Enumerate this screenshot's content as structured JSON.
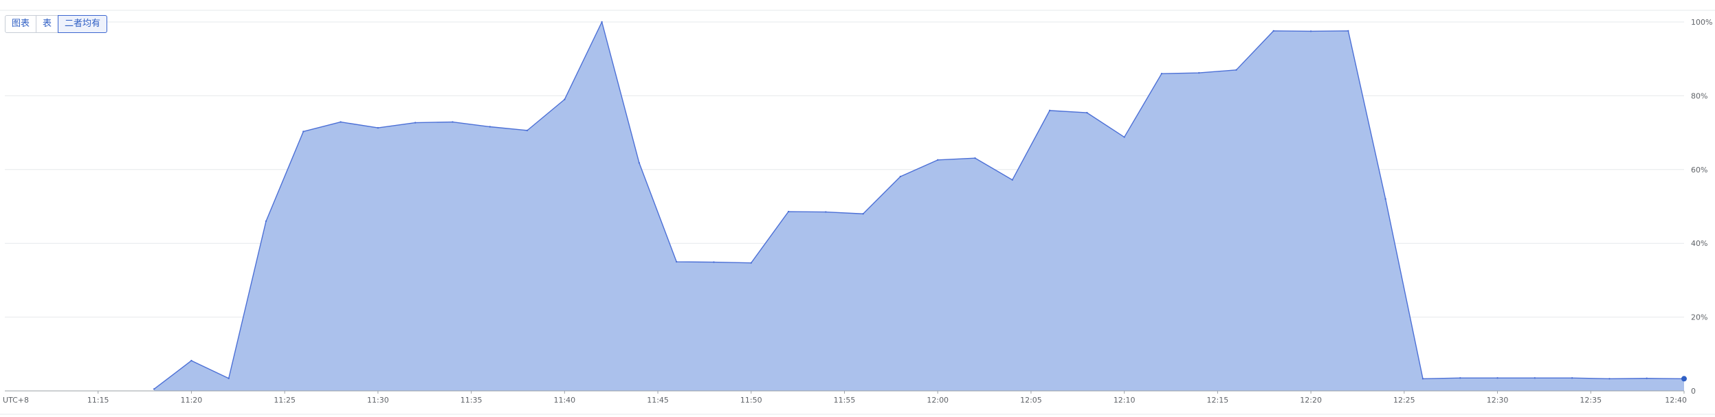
{
  "view_toggle": {
    "buttons": [
      {
        "label": "图表",
        "active": false
      },
      {
        "label": "表",
        "active": false
      },
      {
        "label": "二者均有",
        "active": true
      }
    ]
  },
  "colors": {
    "area_fill": "#abc1ec",
    "area_line": "#4b6fd6",
    "last_point": "#2f5fc4",
    "grid": "#e6e8eb",
    "axis": "#9aa0a6",
    "tick_text": "#5f6368",
    "toggle_text": "#2f5fc4"
  },
  "chart_data": {
    "type": "area",
    "title": "",
    "xlabel": "",
    "ylabel": "",
    "timezone_label": "UTC+8",
    "x_tick_labels": [
      "11:15",
      "11:20",
      "11:25",
      "11:30",
      "11:35",
      "11:40",
      "11:45",
      "11:50",
      "11:55",
      "12:00",
      "12:05",
      "12:10",
      "12:15",
      "12:20",
      "12:25",
      "12:30",
      "12:35",
      "12:40"
    ],
    "y_tick_labels": [
      "0",
      "20%",
      "40%",
      "60%",
      "80%",
      "100%"
    ],
    "y_ticks": [
      0,
      20,
      40,
      60,
      80,
      100
    ],
    "ylim": [
      0,
      100
    ],
    "xlim": [
      "11:10",
      "12:40"
    ],
    "grid": true,
    "series": [
      {
        "x": [
          "11:18",
          "11:20",
          "11:22",
          "11:24",
          "11:26",
          "11:28",
          "11:30",
          "11:32",
          "11:34",
          "11:36",
          "11:38",
          "11:40",
          "11:42",
          "11:44",
          "11:46",
          "11:48",
          "11:50",
          "11:52",
          "11:54",
          "11:56",
          "11:58",
          "12:00",
          "12:02",
          "12:04",
          "12:06",
          "12:08",
          "12:10",
          "12:12",
          "12:14",
          "12:16",
          "12:18",
          "12:20",
          "12:22",
          "12:24",
          "12:26",
          "12:28",
          "12:30",
          "12:32",
          "12:34",
          "12:36",
          "12:38",
          "12:40"
        ],
        "values": [
          0.5,
          8.2,
          3.4,
          46,
          70.3,
          72.9,
          71.3,
          72.7,
          72.9,
          71.6,
          70.6,
          79,
          100,
          61.8,
          35,
          34.9,
          34.7,
          48.6,
          48.5,
          48,
          58.1,
          62.6,
          63.1,
          57.2,
          76,
          75.4,
          68.8,
          86,
          86.2,
          87,
          97.6,
          97.5,
          97.6,
          52,
          3.3,
          3.5,
          3.5,
          3.5,
          3.5,
          3.3,
          3.4,
          3.3
        ]
      }
    ]
  }
}
